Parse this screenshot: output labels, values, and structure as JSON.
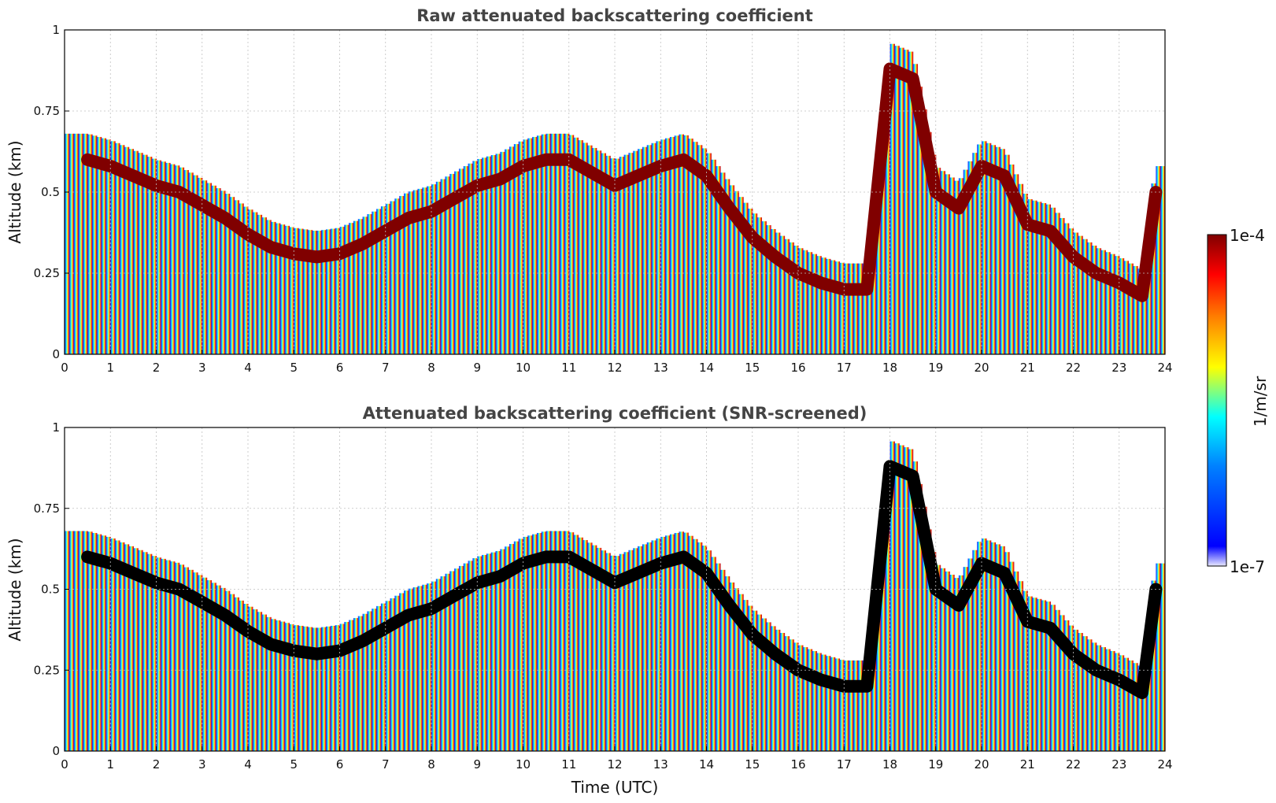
{
  "chart_data": [
    {
      "type": "heatmap",
      "title": "Raw attenuated backscattering coefficient",
      "xlabel": "",
      "ylabel": "Altitude (km)",
      "xlim": [
        0,
        24
      ],
      "ylim": [
        0,
        1
      ],
      "x_ticks": [
        "0",
        "1",
        "2",
        "3",
        "4",
        "5",
        "6",
        "7",
        "8",
        "9",
        "10",
        "11",
        "12",
        "13",
        "14",
        "15",
        "16",
        "17",
        "18",
        "19",
        "20",
        "21",
        "22",
        "23",
        "24"
      ],
      "y_ticks": [
        "0",
        "0.25",
        "0.5",
        "0.75",
        "1"
      ],
      "grid": true,
      "colorscale": "jet",
      "screening": "none",
      "layer": {
        "time": [
          0.5,
          1,
          1.5,
          2,
          2.5,
          3,
          3.5,
          4,
          4.5,
          5,
          5.5,
          6,
          6.5,
          7,
          7.5,
          8,
          8.5,
          9,
          9.5,
          10,
          10.5,
          11,
          11.5,
          12,
          12.5,
          13,
          13.5,
          14,
          14.5,
          15,
          15.5,
          16,
          16.5,
          17,
          17.5,
          18,
          18.5,
          19,
          19.5,
          20,
          20.5,
          21,
          21.5,
          22,
          22.5,
          23,
          23.5,
          23.8
        ],
        "altitude_km": [
          0.6,
          0.58,
          0.55,
          0.52,
          0.5,
          0.46,
          0.42,
          0.37,
          0.33,
          0.31,
          0.3,
          0.31,
          0.34,
          0.38,
          0.42,
          0.44,
          0.48,
          0.52,
          0.54,
          0.58,
          0.6,
          0.6,
          0.56,
          0.52,
          0.55,
          0.58,
          0.6,
          0.55,
          0.45,
          0.36,
          0.3,
          0.25,
          0.22,
          0.2,
          0.2,
          0.88,
          0.85,
          0.5,
          0.45,
          0.58,
          0.55,
          0.4,
          0.38,
          0.3,
          0.25,
          0.22,
          0.18,
          0.5
        ]
      }
    },
    {
      "type": "heatmap",
      "title": "Attenuated backscattering coefficient (SNR-screened)",
      "xlabel": "Time (UTC)",
      "ylabel": "Altitude (km)",
      "xlim": [
        0,
        24
      ],
      "ylim": [
        0,
        1
      ],
      "x_ticks": [
        "0",
        "1",
        "2",
        "3",
        "4",
        "5",
        "6",
        "7",
        "8",
        "9",
        "10",
        "11",
        "12",
        "13",
        "14",
        "15",
        "16",
        "17",
        "18",
        "19",
        "20",
        "21",
        "22",
        "23",
        "24"
      ],
      "y_ticks": [
        "0",
        "0.25",
        "0.5",
        "0.75",
        "1"
      ],
      "grid": true,
      "colorscale": "jet",
      "screening": "SNR",
      "layer": {
        "time": [
          0.5,
          1,
          1.5,
          2,
          2.5,
          3,
          3.5,
          4,
          4.5,
          5,
          5.5,
          6,
          6.5,
          7,
          7.5,
          8,
          8.5,
          9,
          9.5,
          10,
          10.5,
          11,
          11.5,
          12,
          12.5,
          13,
          13.5,
          14,
          14.5,
          15,
          15.5,
          16,
          16.5,
          17,
          17.5,
          18,
          18.5,
          19,
          19.5,
          20,
          20.5,
          21,
          21.5,
          22,
          22.5,
          23,
          23.5,
          23.8
        ],
        "altitude_km": [
          0.6,
          0.58,
          0.55,
          0.52,
          0.5,
          0.46,
          0.42,
          0.37,
          0.33,
          0.31,
          0.3,
          0.31,
          0.34,
          0.38,
          0.42,
          0.44,
          0.48,
          0.52,
          0.54,
          0.58,
          0.6,
          0.6,
          0.56,
          0.52,
          0.55,
          0.58,
          0.6,
          0.55,
          0.45,
          0.36,
          0.3,
          0.25,
          0.22,
          0.2,
          0.2,
          0.88,
          0.85,
          0.5,
          0.45,
          0.58,
          0.55,
          0.4,
          0.38,
          0.3,
          0.25,
          0.22,
          0.18,
          0.5
        ]
      }
    }
  ],
  "colorbar": {
    "label": "1/m/sr",
    "max_label": "1e-4",
    "min_label": "1e-7",
    "scale": "log",
    "range": [
      1e-07,
      0.0001
    ],
    "colors": [
      "#e8e8ff",
      "#0000ff",
      "#0080ff",
      "#00ffff",
      "#ffff00",
      "#ff8000",
      "#ff0000",
      "#800000"
    ]
  }
}
